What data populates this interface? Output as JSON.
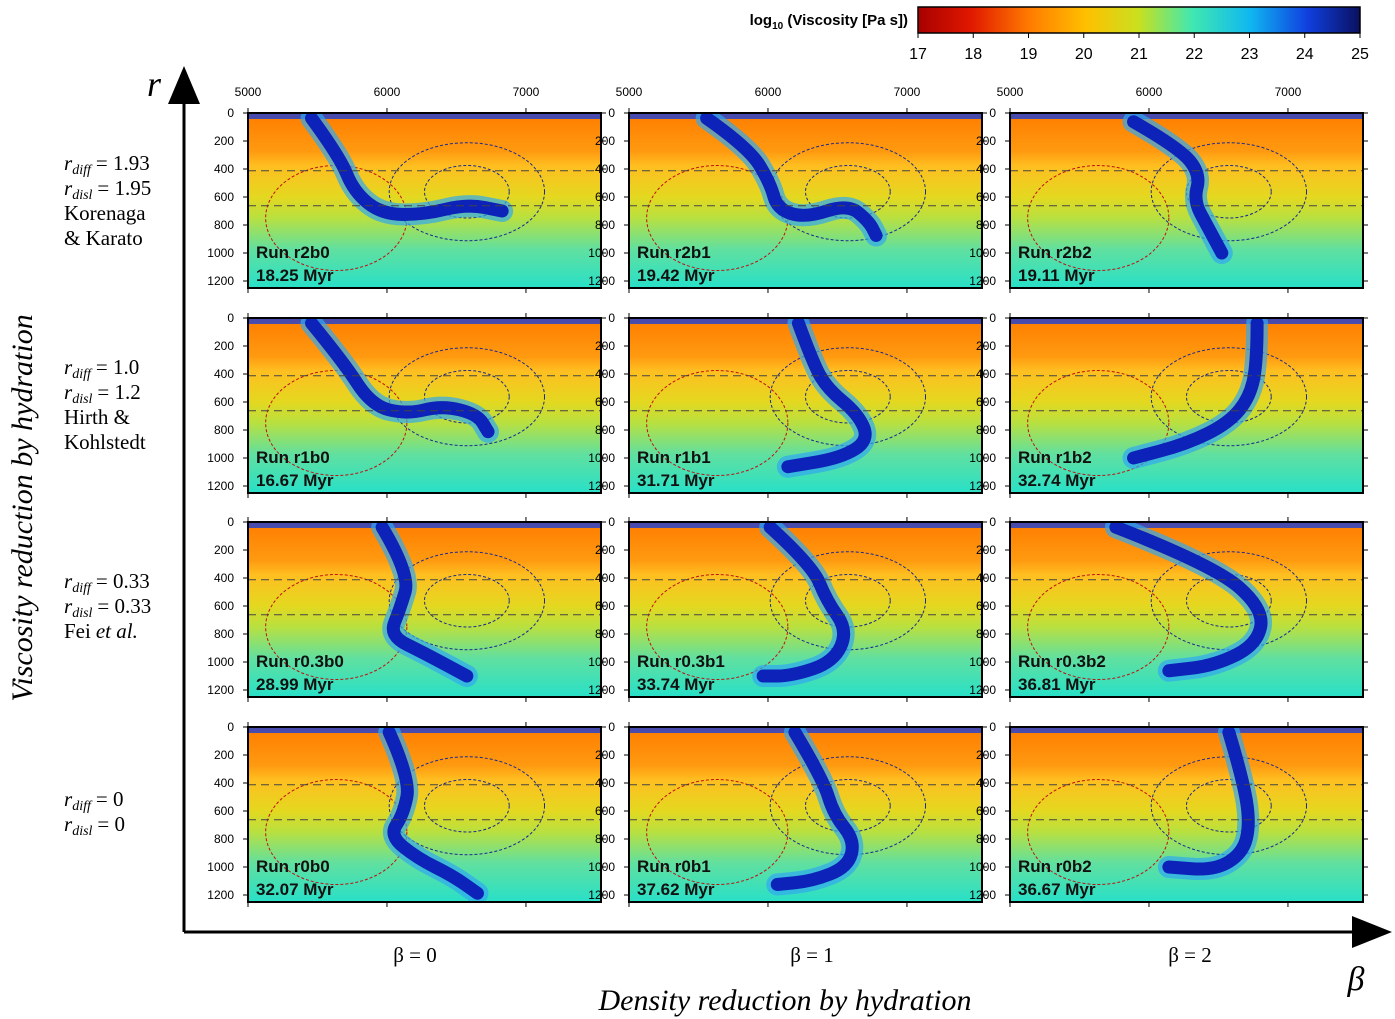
{
  "colorbar": {
    "title_main": "log",
    "title_sub": "10",
    "title_rest": " (Viscosity [Pa s])",
    "lim": [
      17,
      25
    ],
    "ticks": [
      17,
      18,
      19,
      20,
      21,
      22,
      23,
      24,
      25
    ]
  },
  "y_axis": {
    "symbol": "r",
    "title": "Viscosity reduction by hydration"
  },
  "x_axis": {
    "symbol": "β",
    "title": "Density reduction by hydration"
  },
  "panel_axes": {
    "xlim": [
      5000,
      7540
    ],
    "xticks": [
      5000,
      6000,
      7000
    ],
    "ylim": [
      0,
      1250
    ],
    "yticks": [
      0,
      200,
      400,
      600,
      800,
      1000,
      1200
    ]
  },
  "columns": [
    {
      "label": "β = 0"
    },
    {
      "label": "β = 1"
    },
    {
      "label": "β = 2"
    }
  ],
  "r_symbol": "r",
  "diff_sub": "diff",
  "disl_sub": "disl",
  "rows": [
    {
      "r_diff": "= 1.93",
      "r_disl": "= 1.95",
      "ref_lines": [
        [
          "Korenaga"
        ],
        [
          "& Karato"
        ]
      ]
    },
    {
      "r_diff": "= 1.0",
      "r_disl": "= 1.2",
      "ref_lines": [
        [
          "Hirth &"
        ],
        [
          "Kohlstedt"
        ]
      ]
    },
    {
      "r_diff": "= 0.33",
      "r_disl": "= 0.33",
      "ref_lines": [
        [
          "Fei",
          {
            "text": "et al.",
            "italic": true
          }
        ]
      ]
    },
    {
      "r_diff": "= 0",
      "r_disl": "= 0",
      "ref_lines": []
    }
  ],
  "panels": [
    [
      {
        "run": "Run r2b0",
        "time": "18.25 Myr"
      },
      {
        "run": "Run r2b1",
        "time": "19.42 Myr"
      },
      {
        "run": "Run r2b2",
        "time": "19.11 Myr"
      }
    ],
    [
      {
        "run": "Run r1b0",
        "time": "16.67 Myr"
      },
      {
        "run": "Run r1b1",
        "time": "31.71 Myr"
      },
      {
        "run": "Run r1b2",
        "time": "32.74 Myr"
      }
    ],
    [
      {
        "run": "Run r0.3b0",
        "time": "28.99 Myr"
      },
      {
        "run": "Run r0.3b1",
        "time": "33.74 Myr"
      },
      {
        "run": "Run r0.3b2",
        "time": "36.81 Myr"
      }
    ],
    [
      {
        "run": "Run r0b0",
        "time": "32.07 Myr"
      },
      {
        "run": "Run r0b1",
        "time": "37.62 Myr"
      },
      {
        "run": "Run r0b2",
        "time": "36.67 Myr"
      }
    ]
  ]
}
